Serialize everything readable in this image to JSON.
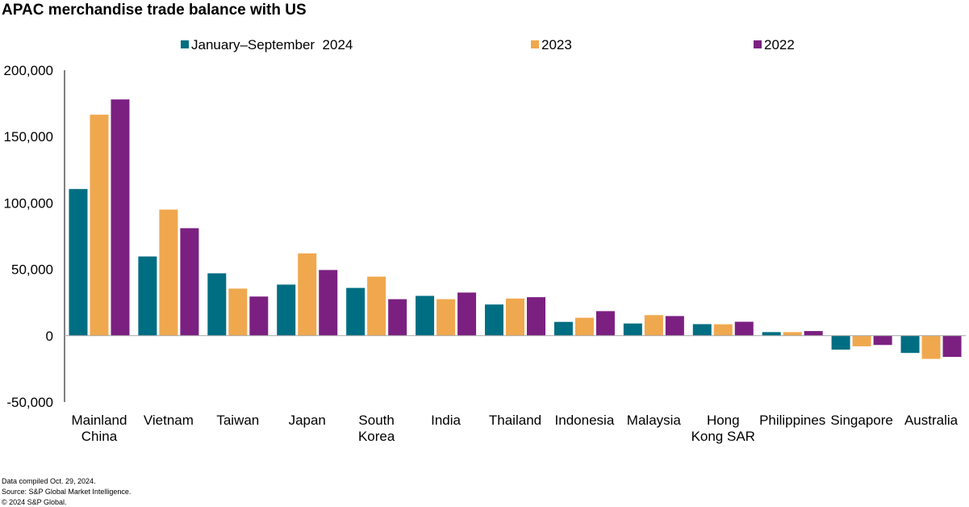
{
  "title": "APAC merchandise trade balance with US",
  "footnotes": {
    "compiled": "Data compiled Oct. 29, 2024.",
    "source": "Source: S&P Global Market Intelligence.",
    "copyright": "© 2024 S&P Global."
  },
  "chart_data": {
    "type": "bar",
    "title": "APAC merchandise trade balance with US",
    "xlabel": "",
    "ylabel": "",
    "ylim": [
      -50000,
      200000
    ],
    "yticks": [
      200000,
      150000,
      100000,
      50000,
      0,
      -50000
    ],
    "ytick_labels": [
      "200,000",
      "150,000",
      "100,000",
      "50,000",
      "0",
      "-50,000"
    ],
    "legend_position": "top",
    "grid": false,
    "categories": [
      [
        "Mainland",
        "China"
      ],
      [
        "Vietnam"
      ],
      [
        "Taiwan"
      ],
      [
        "Japan"
      ],
      [
        "South",
        "Korea"
      ],
      [
        "India"
      ],
      [
        "Thailand"
      ],
      [
        "Indonesia"
      ],
      [
        "Malaysia"
      ],
      [
        "Hong",
        "Kong SAR"
      ],
      [
        "Philippines"
      ],
      [
        "Singapore"
      ],
      [
        "Australia"
      ]
    ],
    "series": [
      {
        "name": "January–September  2024",
        "color": "#006e82",
        "values": [
          110500,
          59700,
          47000,
          38500,
          36000,
          30000,
          23500,
          10400,
          9200,
          8700,
          2700,
          -10500,
          -13000
        ]
      },
      {
        "name": "2023",
        "color": "#f0a84e",
        "values": [
          166500,
          95000,
          35500,
          62000,
          44500,
          27500,
          28000,
          13500,
          15500,
          8600,
          2700,
          -8000,
          -17500
        ]
      },
      {
        "name": "2022",
        "color": "#7b2081",
        "values": [
          178000,
          81000,
          29500,
          49500,
          27500,
          32500,
          29000,
          18500,
          14800,
          10500,
          3500,
          -7000,
          -16000
        ]
      }
    ]
  }
}
